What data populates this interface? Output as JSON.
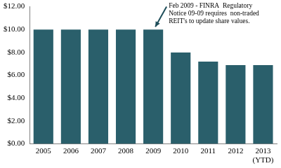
{
  "chart_data": {
    "type": "bar",
    "categories": [
      "2005",
      "2006",
      "2007",
      "2008",
      "2009",
      "2010",
      "2011",
      "2012",
      [
        "2013",
        "(YTD)"
      ]
    ],
    "values": [
      10,
      10,
      10,
      10,
      10,
      8.0,
      7.2,
      6.9,
      6.9
    ],
    "color": "#2a5f6b",
    "ylim": [
      0,
      12
    ],
    "yticks": [
      {
        "value": 0,
        "label": "$0.00"
      },
      {
        "value": 2,
        "label": "$2.00"
      },
      {
        "value": 4,
        "label": "$4.00"
      },
      {
        "value": 6,
        "label": "$6.00"
      },
      {
        "value": 8,
        "label": "$8.00"
      },
      {
        "value": 10,
        "label": "$10.00"
      },
      {
        "value": 12,
        "label": "$12.00"
      }
    ],
    "grid": false,
    "annotation": {
      "text": [
        "Feb 2009 - FINRA  Regulatory",
        "Notice 09-09 requires  non-traded",
        "REIT's to update share values."
      ],
      "x": "2009"
    }
  }
}
